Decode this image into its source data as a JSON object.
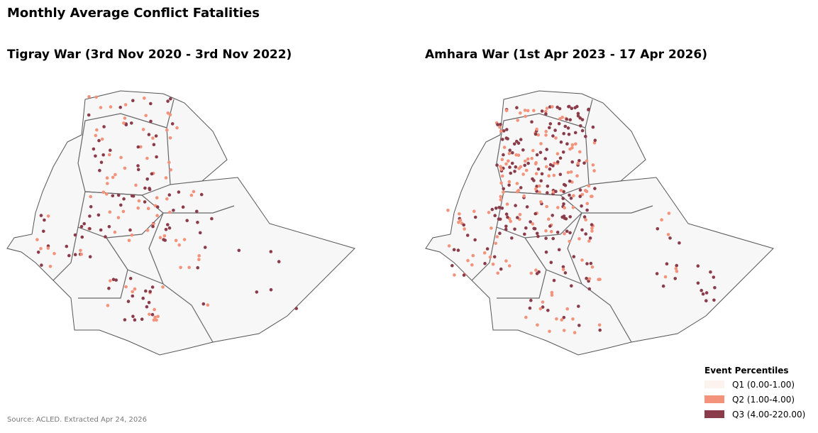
{
  "title": "Monthly Average Conflict Fatalities",
  "maps": [
    {
      "title": "Tigray War (3rd Nov 2020 - 3rd Nov 2022)"
    },
    {
      "title": "Amhara War (1st Apr 2023 - 17 Apr 2026)"
    }
  ],
  "legend": {
    "title": "Event Percentiles",
    "items": [
      {
        "label": "Q1 (0.00-1.00)",
        "color": "#fcf2ee"
      },
      {
        "label": "Q2 (1.00-4.00)",
        "color": "#f4937c"
      },
      {
        "label": "Q3 (4.00-220.00)",
        "color": "#8b3c4a"
      }
    ]
  },
  "source": "Source: ACLED. Extracted Apr 24, 2026"
}
